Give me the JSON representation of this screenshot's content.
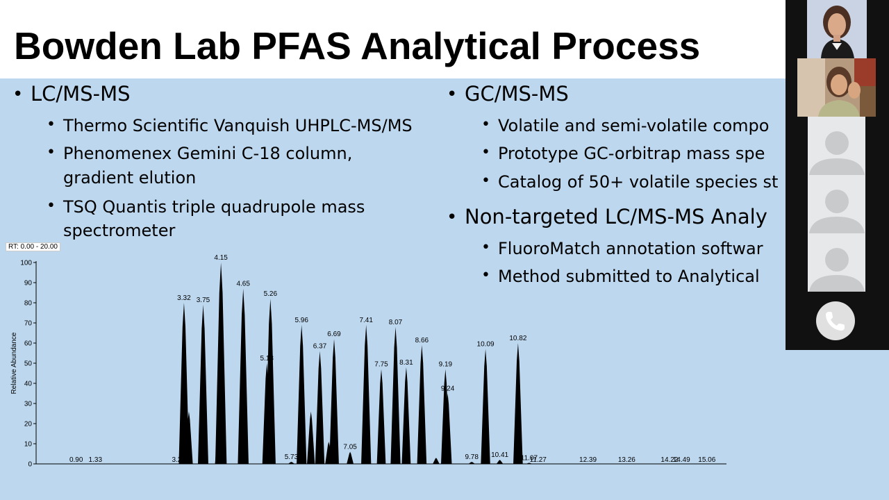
{
  "slide": {
    "title": "Bowden Lab PFAS Analytical Process",
    "left": {
      "heading": "LC/MS-MS",
      "items": [
        "Thermo Scientific Vanquish UHPLC-MS/MS",
        "Phenomenex Gemini C-18 column,",
        "gradient elution",
        "TSQ Quantis triple quadrupole mass",
        "spectrometer"
      ]
    },
    "right": {
      "heading1": "GC/MS-MS",
      "items1": [
        "Volatile and semi-volatile compo",
        "Prototype GC-orbitrap mass spe",
        "Catalog of 50+ volatile species st"
      ],
      "heading2": "Non-targeted LC/MS-MS Analy",
      "items2": [
        "FluoroMatch annotation softwar",
        "Method submitted to Analytical"
      ]
    }
  },
  "chart_data": {
    "type": "line",
    "rt_label": "RT: 0.00 - 20.00",
    "ylabel": "Relative Abundance",
    "ylim": [
      0,
      100
    ],
    "y_ticks": [
      0,
      10,
      20,
      30,
      40,
      50,
      60,
      70,
      80,
      90,
      100
    ],
    "xlim": [
      0,
      15.5
    ],
    "color": "#000000",
    "peaks": [
      {
        "rt": 3.32,
        "h": 80,
        "label": "3.32"
      },
      {
        "rt": 3.43,
        "h": 26,
        "label": ""
      },
      {
        "rt": 3.75,
        "h": 79,
        "label": "3.75"
      },
      {
        "rt": 4.15,
        "h": 100,
        "label": "4.15"
      },
      {
        "rt": 4.1,
        "h": 19,
        "label": ""
      },
      {
        "rt": 4.65,
        "h": 87,
        "label": "4.65"
      },
      {
        "rt": 5.18,
        "h": 50,
        "label": "5.18"
      },
      {
        "rt": 5.26,
        "h": 82,
        "label": "5.26"
      },
      {
        "rt": 5.73,
        "h": 1,
        "label": "5.73"
      },
      {
        "rt": 5.96,
        "h": 69,
        "label": "5.96"
      },
      {
        "rt": 6.17,
        "h": 26,
        "label": ""
      },
      {
        "rt": 6.37,
        "h": 56,
        "label": "6.37"
      },
      {
        "rt": 6.57,
        "h": 11,
        "label": ""
      },
      {
        "rt": 6.69,
        "h": 62,
        "label": "6.69"
      },
      {
        "rt": 7.05,
        "h": 6,
        "label": "7.05"
      },
      {
        "rt": 7.41,
        "h": 69,
        "label": "7.41"
      },
      {
        "rt": 7.75,
        "h": 47,
        "label": "7.75"
      },
      {
        "rt": 8.07,
        "h": 68,
        "label": "8.07"
      },
      {
        "rt": 8.31,
        "h": 48,
        "label": "8.31"
      },
      {
        "rt": 8.66,
        "h": 59,
        "label": "8.66"
      },
      {
        "rt": 8.98,
        "h": 3,
        "label": ""
      },
      {
        "rt": 9.19,
        "h": 47,
        "label": "9.19"
      },
      {
        "rt": 9.24,
        "h": 35,
        "label": "9.24"
      },
      {
        "rt": 9.78,
        "h": 1,
        "label": "9.78"
      },
      {
        "rt": 10.09,
        "h": 57,
        "label": "10.09"
      },
      {
        "rt": 10.41,
        "h": 2,
        "label": "10.41"
      },
      {
        "rt": 10.82,
        "h": 60,
        "label": "10.82"
      },
      {
        "rt": 11.07,
        "h": 0.5,
        "label": "11.07"
      }
    ],
    "baseline_labels": [
      "0.90",
      "1.33",
      "3.20",
      "11.27",
      "12.39",
      "13.26",
      "14.22",
      "14.49",
      "15.06"
    ],
    "baseline_label_rt": [
      0.9,
      1.33,
      3.2,
      11.27,
      12.39,
      13.26,
      14.22,
      14.49,
      15.06
    ]
  },
  "call_panel": {
    "participants": [
      "participant-1",
      "participant-2",
      "participant-3",
      "participant-4",
      "participant-5"
    ],
    "end_call": "phone-icon"
  }
}
